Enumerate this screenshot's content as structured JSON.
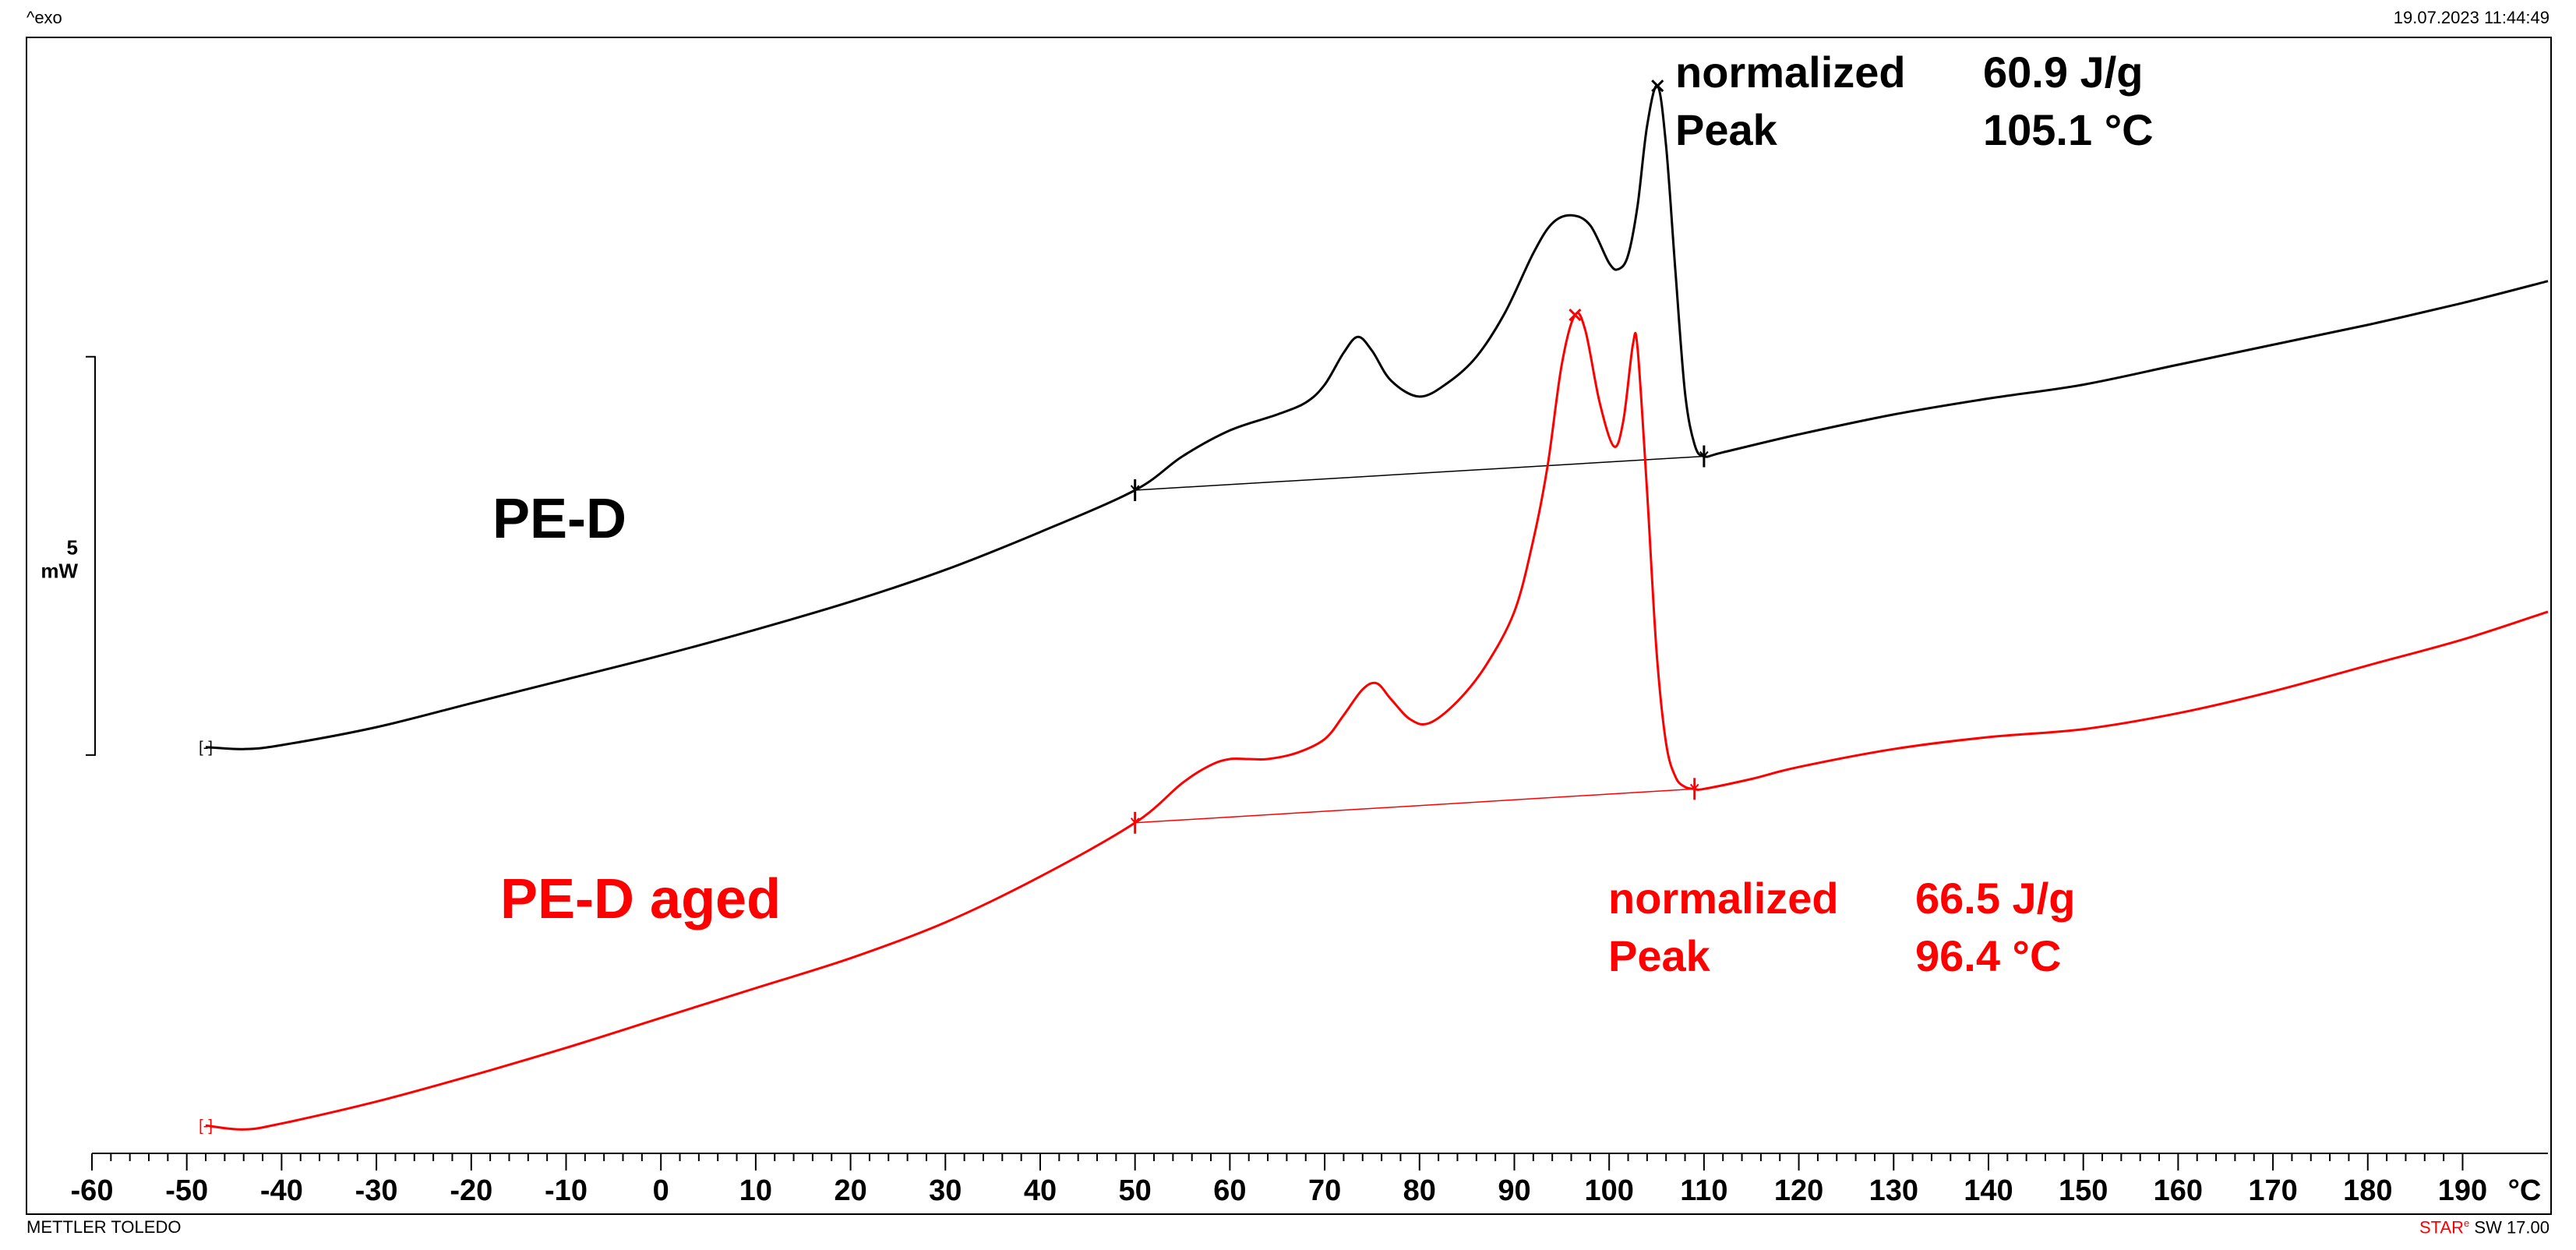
{
  "header": {
    "exo_label": "^exo",
    "timestamp": "19.07.2023 11:44:49"
  },
  "footer": {
    "brand": "METTLER TOLEDO",
    "software_star": "STAR",
    "software_mark": "e",
    "software_version": "SW 17.00"
  },
  "colors": {
    "series_1": "#000000",
    "series_2": "#ff0000",
    "axis": "#000000"
  },
  "chart_data": {
    "type": "line",
    "title": "",
    "xlabel": "°C",
    "ylabel": "mW",
    "xlim": [
      -60,
      199
    ],
    "ylim": [
      -15,
      12
    ],
    "x_ticks": [
      -60,
      -50,
      -40,
      -30,
      -20,
      -10,
      0,
      10,
      20,
      30,
      40,
      50,
      60,
      70,
      80,
      90,
      100,
      110,
      120,
      130,
      140,
      150,
      160,
      170,
      180,
      190
    ],
    "x_tick_labels": [
      "-60",
      "-50",
      "-40",
      "-30",
      "-20",
      "-10",
      "0",
      "10",
      "20",
      "30",
      "40",
      "50",
      "60",
      "70",
      "80",
      "90",
      "100",
      "110",
      "120",
      "130",
      "140",
      "150",
      "160",
      "170",
      "180",
      "190"
    ],
    "scale_bar": {
      "label_value": "5",
      "label_unit": "mW",
      "from": -5,
      "to": 5
    },
    "series": [
      {
        "name": "PE-D",
        "color": "#000000",
        "x": [
          -48,
          -44,
          -40,
          -30,
          -20,
          -10,
          0,
          10,
          20,
          30,
          40,
          50,
          55,
          60,
          65,
          68,
          70,
          72,
          73.5,
          75,
          77,
          80,
          83,
          86,
          89,
          92,
          94,
          96,
          98,
          100,
          101,
          102,
          103,
          104,
          105.1,
          106,
          107,
          108,
          109,
          110,
          112,
          120,
          130,
          140,
          150,
          160,
          170,
          180,
          190,
          199
        ],
        "y": [
          -4.8,
          -4.85,
          -4.75,
          -4.3,
          -3.7,
          -3.1,
          -2.5,
          -1.85,
          -1.15,
          -0.35,
          0.6,
          1.65,
          2.5,
          3.15,
          3.55,
          3.85,
          4.3,
          5.1,
          5.5,
          5.15,
          4.4,
          4.0,
          4.35,
          5.0,
          6.1,
          7.6,
          8.35,
          8.55,
          8.3,
          7.35,
          7.2,
          7.55,
          8.8,
          10.8,
          11.8,
          10.3,
          7.1,
          4.1,
          2.8,
          2.5,
          2.6,
          3.05,
          3.55,
          3.95,
          4.3,
          4.8,
          5.3,
          5.8,
          6.35,
          6.9
        ],
        "integration": {
          "start_x": 50,
          "start_y": 1.65,
          "end_x": 110,
          "end_y": 2.5,
          "normalized_label": "normalized",
          "normalized_value": "60.9 J/g",
          "peak_label": "Peak",
          "peak_value": "105.1 °C",
          "peak_x": 105.1
        }
      },
      {
        "name": "PE-D aged",
        "color": "#ff0000",
        "x": [
          -48,
          -44,
          -40,
          -30,
          -20,
          -10,
          0,
          10,
          20,
          30,
          40,
          50,
          55,
          58,
          60,
          62,
          64,
          67,
          70,
          72,
          74,
          75.5,
          77,
          79,
          81,
          84,
          87,
          90,
          92,
          93.5,
          95,
          96.4,
          97.5,
          99,
          100.5,
          101.5,
          102.5,
          103,
          104,
          105,
          106,
          107,
          108,
          109,
          110,
          115,
          120,
          130,
          140,
          150,
          160,
          170,
          180,
          190,
          199
        ],
        "y": [
          -14.3,
          -14.4,
          -14.25,
          -13.7,
          -13.05,
          -12.35,
          -11.6,
          -10.85,
          -10.1,
          -9.2,
          -8.05,
          -6.7,
          -5.7,
          -5.25,
          -5.1,
          -5.1,
          -5.1,
          -4.95,
          -4.6,
          -4.0,
          -3.35,
          -3.2,
          -3.6,
          -4.1,
          -4.2,
          -3.65,
          -2.75,
          -1.4,
          0.4,
          2.25,
          4.8,
          6.05,
          5.65,
          3.85,
          2.75,
          3.4,
          5.3,
          5.2,
          1.6,
          -2.4,
          -4.7,
          -5.55,
          -5.8,
          -5.85,
          -5.85,
          -5.6,
          -5.3,
          -4.85,
          -4.55,
          -4.35,
          -3.95,
          -3.4,
          -2.75,
          -2.1,
          -1.4
        ],
        "integration": {
          "start_x": 50,
          "start_y": -6.7,
          "end_x": 109,
          "end_y": -5.85,
          "normalized_label": "normalized",
          "normalized_value": "66.5 J/g",
          "peak_label": "Peak",
          "peak_value": "96.4 °C",
          "peak_x": 96.4
        }
      }
    ]
  }
}
